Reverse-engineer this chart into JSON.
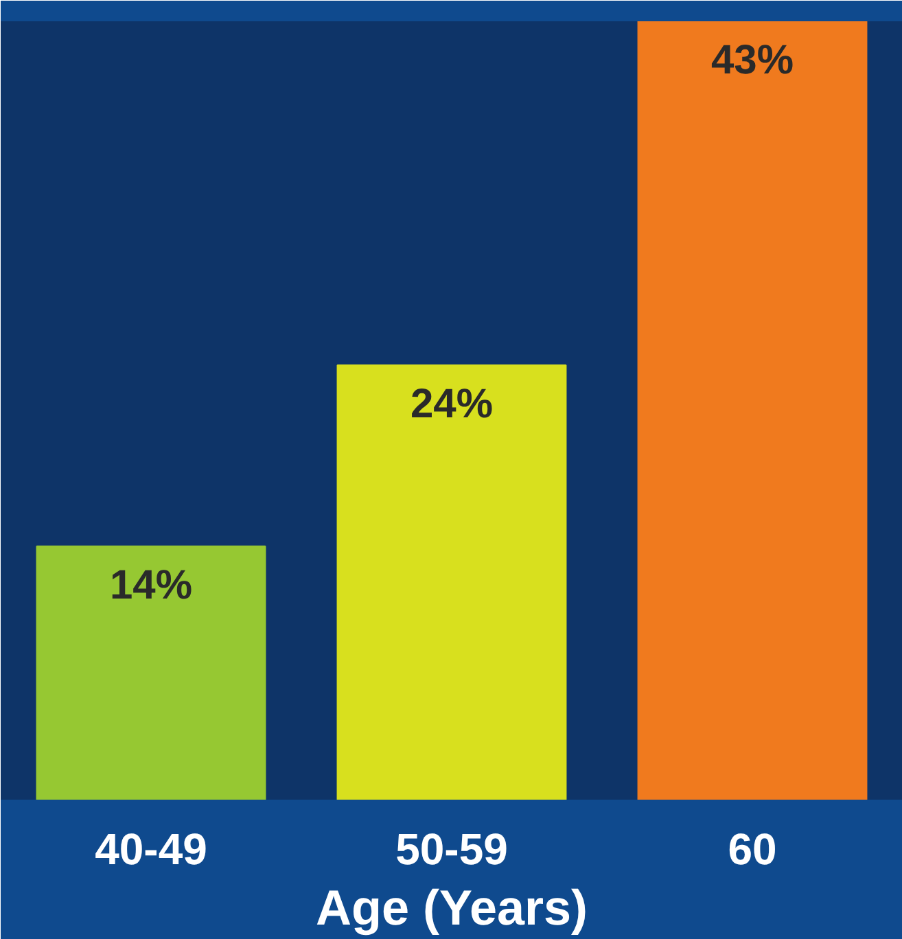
{
  "chart_data": {
    "type": "bar",
    "xlabel": "Age (Years)",
    "categories": [
      "40-49",
      "50-59",
      "60"
    ],
    "values": [
      14,
      24,
      43
    ],
    "colors": [
      "#96c832",
      "#d8e01e",
      "#f07a1e"
    ],
    "value_labels": [
      "14%",
      "24%",
      "43%"
    ]
  }
}
